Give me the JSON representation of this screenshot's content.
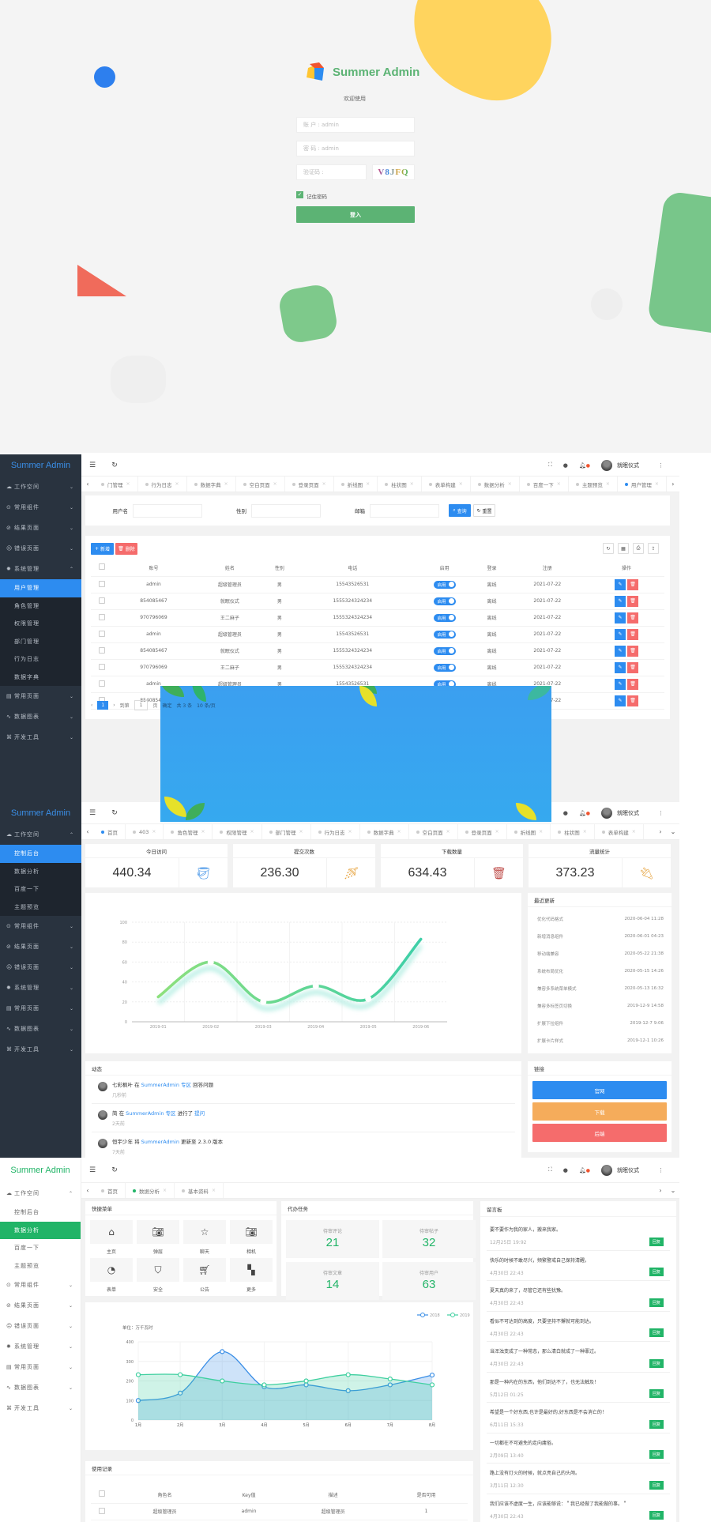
{
  "login": {
    "brand": "Summer Admin",
    "welcome": "欢迎使用",
    "account_placeholder": "账 户 : admin",
    "password_placeholder": "密 码 : admin",
    "captcha_placeholder": "验证码 :",
    "captcha_text": "V8JFQ",
    "remember_label": "记住密码",
    "remember_checked": true,
    "submit_label": "登入",
    "colors": {
      "brand": "#5cb374",
      "button": "#5cb374"
    }
  },
  "common": {
    "brand": "Summer Admin",
    "user_name": "就眠仪式",
    "menu": [
      "工作空间",
      "常用组件",
      "结果页面",
      "错误页面",
      "系统管理",
      "常用页面",
      "数据图表",
      "开发工具"
    ],
    "workspace_sub": [
      "控制后台",
      "数据分析",
      "百度一下",
      "主题预览"
    ],
    "system_sub": [
      "用户管理",
      "角色管理",
      "权限管理",
      "部门管理",
      "行为日志",
      "数据字典"
    ]
  },
  "users_page": {
    "tabs": [
      "门管理",
      "行为日志",
      "数据字典",
      "空白页面",
      "登录页面",
      "折线图",
      "柱状图",
      "表单构建",
      "数据分析",
      "百度一下",
      "主题预览",
      "用户管理"
    ],
    "active_tab": "用户管理",
    "active_menu": "用户管理",
    "search": {
      "username_label": "用户名",
      "gender_label": "性别",
      "email_label": "邮箱",
      "query_label": "查询",
      "reset_label": "重置"
    },
    "add_label": "新增",
    "delete_label": "删除",
    "columns": [
      "账号",
      "姓名",
      "性别",
      "电话",
      "启用",
      "登录",
      "注册",
      "操作"
    ],
    "rows": [
      [
        "admin",
        "超级管理员",
        "男",
        "15543526531",
        "启用",
        "离线",
        "2021-07-22"
      ],
      [
        "854085467",
        "就眠仪式",
        "男",
        "1555324324234",
        "启用",
        "离线",
        "2021-07-22"
      ],
      [
        "970796069",
        "王二麻子",
        "男",
        "1555324324234",
        "启用",
        "离线",
        "2021-07-22"
      ],
      [
        "admin",
        "超级管理员",
        "男",
        "15543526531",
        "启用",
        "离线",
        "2021-07-22"
      ],
      [
        "854085467",
        "就眠仪式",
        "男",
        "1555324324234",
        "启用",
        "离线",
        "2021-07-22"
      ],
      [
        "970796069",
        "王二麻子",
        "男",
        "1555324324234",
        "启用",
        "离线",
        "2021-07-22"
      ],
      [
        "admin",
        "超级管理员",
        "男",
        "15543526531",
        "启用",
        "离线",
        "2021-07-22"
      ],
      [
        "854085467",
        "就眠仪式",
        "男",
        "1555324324234",
        "启用",
        "离线",
        "2021-07-22"
      ]
    ],
    "pagination": {
      "current": "1",
      "goto_label": "到第",
      "goto_value": "1",
      "page_unit": "页",
      "confirm": "确定",
      "total": "共 3 条",
      "page_size": "10 条/页"
    }
  },
  "dashboard": {
    "tabs": [
      "首页",
      "403",
      "角色管理",
      "权限管理",
      "部门管理",
      "行为日志",
      "数据字典",
      "空白页面",
      "登录页面",
      "折线图",
      "柱状图",
      "表单构建"
    ],
    "active_tab": "首页",
    "active_menu": "控制后台",
    "stats": [
      {
        "label": "今日访问",
        "value": "440.34",
        "icon": "paint-bucket-icon"
      },
      {
        "label": "提交次数",
        "value": "236.30",
        "icon": "shower-icon"
      },
      {
        "label": "下载数量",
        "value": "634.43",
        "icon": "trash-bin-icon"
      },
      {
        "label": "流量统计",
        "value": "373.23",
        "icon": "plug-icon"
      }
    ],
    "updates_title": "最近更新",
    "updates": [
      [
        "优化代码格式",
        "2020-06-04 11:28"
      ],
      [
        "新增消息组件",
        "2020-06-01 04:23"
      ],
      [
        "移动端兼容",
        "2020-05-22 21:38"
      ],
      [
        "系统布局优化",
        "2020-05-15 14:26"
      ],
      [
        "兼容多系统菜单模式",
        "2020-05-13 16:32"
      ],
      [
        "兼容多标签页切换",
        "2019-12-9 14:58"
      ],
      [
        "扩展下拉组件",
        "2019-12-7 9:06"
      ],
      [
        "扩展卡片样式",
        "2019-12-1 10:26"
      ]
    ],
    "feed_title": "动态",
    "feed": [
      {
        "who": "七彩枫叶",
        "pre": " 在 ",
        "link": "SummerAdmin 专区",
        "post": " 回答问题",
        "link2": "",
        "time": "几秒前"
      },
      {
        "who": "简",
        "pre": " 在 ",
        "link": "SummerAdmin 专区",
        "post": " 进行了 ",
        "link2": "提问",
        "time": "2天前"
      },
      {
        "who": "恒宇少年",
        "pre": " 将 ",
        "link": "SummerAdmin",
        "post": " 更新至 2.3.0 版本",
        "link2": "",
        "time": "7天前"
      }
    ],
    "links_title": "链接",
    "links": [
      {
        "label": "官网",
        "color": "#2d8cf0"
      },
      {
        "label": "下载",
        "color": "#f5ac5b"
      },
      {
        "label": "后端",
        "color": "#f56c6c"
      }
    ]
  },
  "analysis": {
    "tabs": [
      "首页",
      "数据分析",
      "基本资料"
    ],
    "active_tab": "数据分析",
    "active_menu": "数据分析",
    "accent": "#21b467",
    "quick_title": "快捷菜单",
    "quick": [
      {
        "label": "主页",
        "icon": "home-icon"
      },
      {
        "label": "弹层",
        "icon": "camera-icon"
      },
      {
        "label": "聊天",
        "icon": "star-icon"
      },
      {
        "label": "相机",
        "icon": "camera-icon"
      },
      {
        "label": "表单",
        "icon": "gauge-icon"
      },
      {
        "label": "安全",
        "icon": "shield-icon"
      },
      {
        "label": "公告",
        "icon": "cart-icon"
      },
      {
        "label": "更多",
        "icon": "apps-icon"
      }
    ],
    "tasks_title": "代办任务",
    "tasks": [
      {
        "label": "待审评论",
        "value": "21"
      },
      {
        "label": "待审帖子",
        "value": "32"
      },
      {
        "label": "待审文章",
        "value": "14"
      },
      {
        "label": "待审用户",
        "value": "63"
      }
    ],
    "board_title": "留言板",
    "reply_label": "回复",
    "messages": [
      [
        "要不要作为我的家人，搬来我家。",
        "12月25日 19:92"
      ],
      [
        "快乐的时候不敢尽兴，频繁警戒自己保持清醒。",
        "4月30日 22:43"
      ],
      [
        "夏天真的来了，尽管它还有些犹豫。",
        "4月30日 22:43"
      ],
      [
        "看似不可达到的高度，只要坚持不懈就可能到达。",
        "4月30日 22:43"
      ],
      [
        "当浑浊变成了一种常态，那么清白就成了一种罪过。",
        "4月30日 22:43"
      ],
      [
        "那是一种内在的东西，他们到达不了，也无法触及！",
        "5月12日 01:25"
      ],
      [
        "希望是一个好东西,也许是最好的,好东西是不会消亡的！",
        "6月11日 15:33"
      ],
      [
        "一切都在不可避免的走向庸俗。",
        "2月09日 13:40"
      ],
      [
        "路上没有灯火的时候，就点亮自己的头颅。",
        "3月11日 12:30"
      ],
      [
        "我们应该不虚度一生，应该能够说：＂我已经做了我能做的事。＂",
        "4月30日 22:43"
      ]
    ],
    "records_title": "使用记录",
    "records_columns": [
      "角色名",
      "Key值",
      "描述",
      "是否可用"
    ],
    "records_rows": [
      [
        "超级管理员",
        "admin",
        "超级管理员",
        "1"
      ]
    ]
  },
  "chart_data": [
    {
      "type": "line",
      "categories": [
        "2019-01",
        "2019-02",
        "2019-03",
        "2019-04",
        "2019-05",
        "2019-06"
      ],
      "values": [
        25,
        60,
        20,
        36,
        23,
        83
      ],
      "ylim": [
        0,
        100
      ],
      "yticks": [
        "0",
        "20",
        "40",
        "60",
        "80",
        "100"
      ],
      "grid": true,
      "colors": [
        "#8de07c",
        "#3ecfa8"
      ]
    },
    {
      "type": "area",
      "unit_label": "单位：万千瓦时",
      "categories": [
        "1月",
        "2月",
        "3月",
        "4月",
        "5月",
        "6月",
        "7月",
        "8月"
      ],
      "series": [
        {
          "name": "2018",
          "values": [
            100,
            138,
            350,
            170,
            180,
            150,
            180,
            230
          ],
          "color": "#3a8ee6"
        },
        {
          "name": "2019",
          "values": [
            232,
            232,
            200,
            180,
            200,
            232,
            210,
            180
          ],
          "color": "#3ecf9f"
        }
      ],
      "ylim": [
        0,
        400
      ],
      "yticks": [
        "0",
        "100",
        "200",
        "300",
        "400"
      ],
      "grid": true,
      "legend": "top-right"
    }
  ]
}
